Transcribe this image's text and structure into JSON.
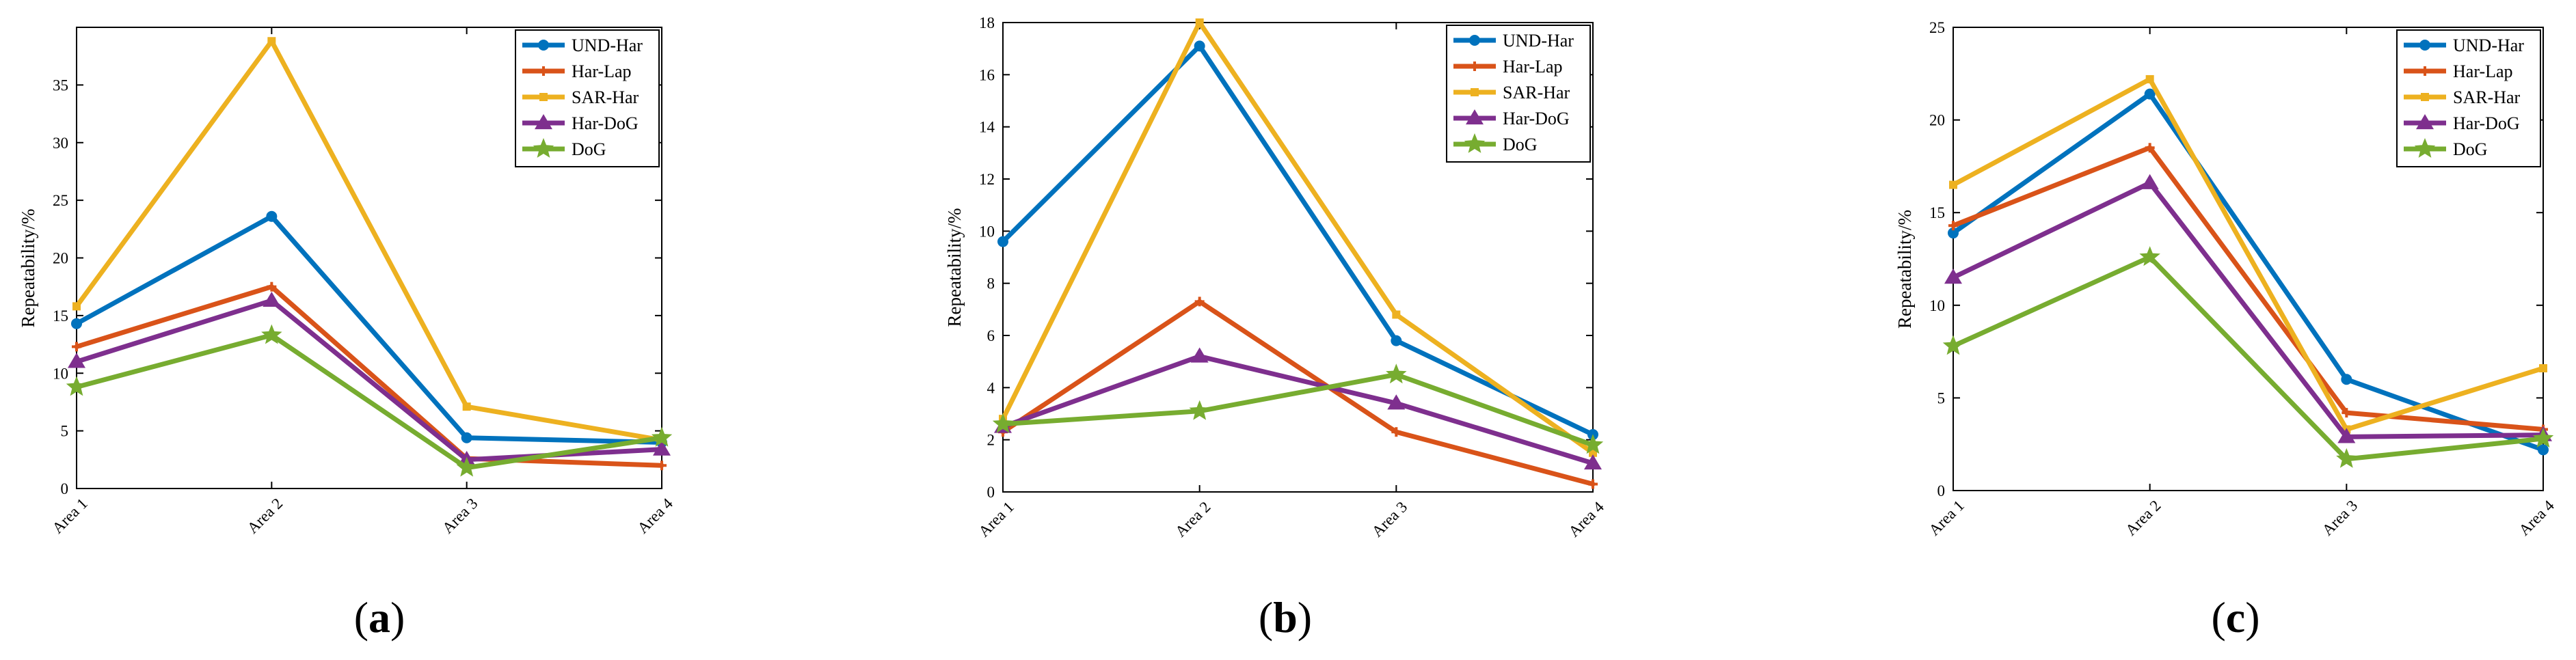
{
  "legend": [
    "UND-Har",
    "Har-Lap",
    "SAR-Har",
    "Har-DoG",
    "DoG"
  ],
  "series_style": [
    {
      "name": "UND-Har",
      "color": "#0072BD",
      "marker": "circle"
    },
    {
      "name": "Har-Lap",
      "color": "#D95319",
      "marker": "plus"
    },
    {
      "name": "SAR-Har",
      "color": "#EDB120",
      "marker": "square"
    },
    {
      "name": "Har-DoG",
      "color": "#7E2F8E",
      "marker": "triangle"
    },
    {
      "name": "DoG",
      "color": "#77AC30",
      "marker": "pentagram"
    }
  ],
  "chart_data": [
    {
      "panel": "a",
      "caption": {
        "open": "(",
        "letter": "a",
        "close": ")"
      },
      "type": "line",
      "categories": [
        "Area 1",
        "Area 2",
        "Area 3",
        "Area 4"
      ],
      "ylabel": "Repeatability/%",
      "xlabel": "",
      "ylim": [
        0,
        40
      ],
      "yticks": [
        0,
        5,
        10,
        15,
        20,
        25,
        30,
        35
      ],
      "legend_position": "top-right",
      "series": [
        {
          "name": "UND-Har",
          "values": [
            14.3,
            23.6,
            4.4,
            4.0
          ]
        },
        {
          "name": "Har-Lap",
          "values": [
            12.3,
            17.5,
            2.6,
            2.0
          ]
        },
        {
          "name": "SAR-Har",
          "values": [
            15.8,
            38.8,
            7.1,
            4.2
          ]
        },
        {
          "name": "Har-DoG",
          "values": [
            11.0,
            16.3,
            2.5,
            3.4
          ]
        },
        {
          "name": "DoG",
          "values": [
            8.8,
            13.3,
            1.8,
            4.4
          ]
        }
      ]
    },
    {
      "panel": "b",
      "caption": {
        "open": "(",
        "letter": "b",
        "close": ")"
      },
      "type": "line",
      "categories": [
        "Area 1",
        "Area 2",
        "Area 3",
        "Area 4"
      ],
      "ylabel": "Repeatability/%",
      "xlabel": "",
      "ylim": [
        0,
        18
      ],
      "yticks": [
        0,
        2,
        4,
        6,
        8,
        10,
        12,
        14,
        16,
        18
      ],
      "legend_position": "top-right",
      "series": [
        {
          "name": "UND-Har",
          "values": [
            9.6,
            17.1,
            5.8,
            2.2
          ]
        },
        {
          "name": "Har-Lap",
          "values": [
            2.3,
            7.3,
            2.3,
            0.3
          ]
        },
        {
          "name": "SAR-Har",
          "values": [
            2.8,
            18.0,
            6.8,
            1.5
          ]
        },
        {
          "name": "Har-DoG",
          "values": [
            2.5,
            5.2,
            3.4,
            1.1
          ]
        },
        {
          "name": "DoG",
          "values": [
            2.6,
            3.1,
            4.5,
            1.8
          ]
        }
      ]
    },
    {
      "panel": "c",
      "caption": {
        "open": "(",
        "letter": "c",
        "close": ")"
      },
      "type": "line",
      "categories": [
        "Area 1",
        "Area 2",
        "Area 3",
        "Area 4"
      ],
      "ylabel": "Repeatability/%",
      "xlabel": "",
      "ylim": [
        0,
        25
      ],
      "yticks": [
        0,
        5,
        10,
        15,
        20,
        25
      ],
      "legend_position": "top-right",
      "series": [
        {
          "name": "UND-Har",
          "values": [
            13.9,
            21.4,
            6.0,
            2.2
          ]
        },
        {
          "name": "Har-Lap",
          "values": [
            14.3,
            18.5,
            4.2,
            3.3
          ]
        },
        {
          "name": "SAR-Har",
          "values": [
            16.5,
            22.2,
            3.3,
            6.6
          ]
        },
        {
          "name": "Har-DoG",
          "values": [
            11.5,
            16.6,
            2.9,
            3.0
          ]
        },
        {
          "name": "DoG",
          "values": [
            7.8,
            12.6,
            1.7,
            2.8
          ]
        }
      ]
    }
  ]
}
